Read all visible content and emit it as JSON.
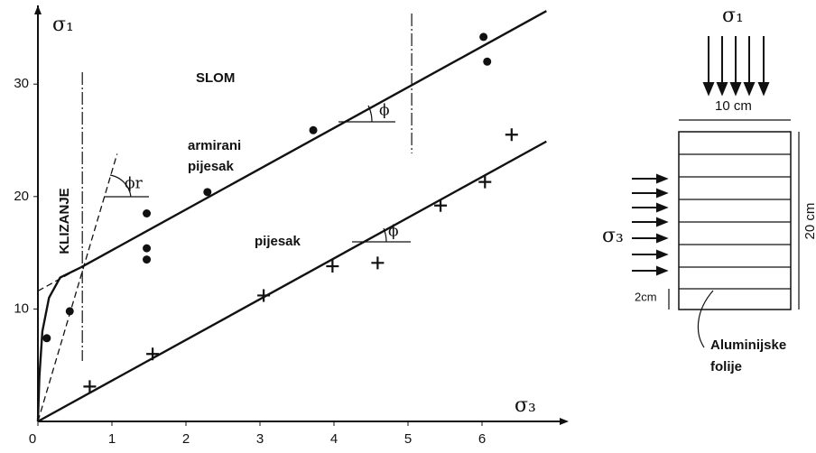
{
  "chart_data": {
    "type": "scatter",
    "xlabel": "σ₃",
    "ylabel": "σ₁",
    "xlim": [
      0,
      7
    ],
    "ylim": [
      0,
      37
    ],
    "xticks": [
      0,
      1,
      2,
      3,
      4,
      5,
      6
    ],
    "yticks": [
      10,
      20,
      30
    ],
    "vlines": [
      0.6,
      5.05
    ],
    "series": [
      {
        "marker": "dot",
        "color": "#111",
        "x": [
          0.12,
          0.43,
          1.47,
          1.47,
          1.47,
          2.29,
          3.72,
          6.02,
          6.07
        ],
        "values": [
          7.4,
          9.8,
          18.5,
          15.4,
          14.4,
          20.4,
          25.9,
          34.2,
          32.0
        ]
      },
      {
        "marker": "cross",
        "color": "#111",
        "x": [
          0.7,
          1.55,
          3.05,
          3.98,
          4.59,
          5.44,
          6.04,
          6.4
        ],
        "values": [
          3.1,
          6.0,
          11.2,
          13.8,
          14.1,
          19.2,
          21.3,
          25.5
        ]
      },
      {
        "marker": "line",
        "color": "#111",
        "x": [
          0.58,
          6.87
        ],
        "values": [
          13.7,
          36.5
        ]
      },
      {
        "marker": "line",
        "color": "#111",
        "x": [
          0,
          6.87
        ],
        "values": [
          0,
          24.9
        ]
      },
      {
        "marker": "line",
        "color": "#111",
        "x": [
          0,
          0.02,
          0.06,
          0.15,
          0.3,
          0.58
        ],
        "values": [
          0,
          4,
          8,
          11,
          12.8,
          13.7
        ]
      },
      {
        "marker": "dashed",
        "color": "#111",
        "x": [
          0,
          1.07
        ],
        "values": [
          0,
          23.8
        ]
      },
      {
        "marker": "dashed",
        "color": "#111",
        "x": [
          0,
          0.58
        ],
        "values": [
          11.6,
          13.7
        ]
      }
    ],
    "annotations": [
      "SLOM",
      "armirani",
      "pijesak",
      "KLIZANJE",
      "pijesak",
      "ϕ",
      "ϕ",
      "ϕr"
    ]
  },
  "diagram": {
    "sigma1": "σ₁",
    "width": "10 cm",
    "height": "20 cm",
    "sigma3": "σ₃",
    "layer": "2cm",
    "foil": [
      "Aluminijske",
      "folije"
    ]
  }
}
